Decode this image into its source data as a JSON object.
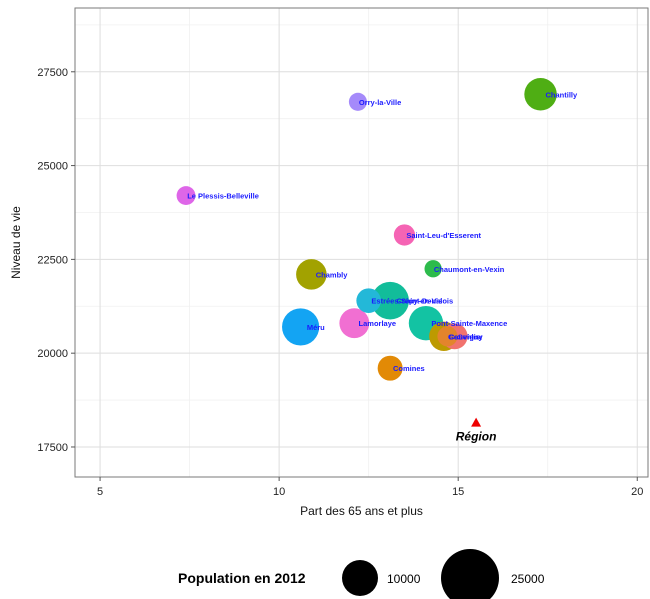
{
  "chart_data": {
    "type": "scatter",
    "xlabel": "Part des 65 ans et plus",
    "ylabel": "Niveau de vie",
    "xlim": [
      4.3,
      20.3
    ],
    "ylim": [
      16700,
      29200
    ],
    "x_ticks": [
      5,
      10,
      15,
      20
    ],
    "y_ticks": [
      17500,
      20000,
      22500,
      25000,
      27500
    ],
    "x_tick_labels": [
      "5",
      "10",
      "15",
      "20"
    ],
    "y_tick_labels": [
      "17500",
      "20000",
      "22500",
      "25000",
      "27500"
    ],
    "grid": true,
    "size_legend": {
      "title": "Population en 2012",
      "entries": [
        {
          "label": "10000",
          "value": 10000
        },
        {
          "label": "25000",
          "value": 25000
        }
      ]
    },
    "points": [
      {
        "label": "Chantilly",
        "x": 17.3,
        "y": 26900,
        "population": 11000,
        "color": "#4fae14"
      },
      {
        "label": "Orry-la-Ville",
        "x": 12.2,
        "y": 26700,
        "population": 3400,
        "color": "#a58afa"
      },
      {
        "label": "Le Plessis-Belleville",
        "x": 7.4,
        "y": 24200,
        "population": 3700,
        "color": "#de66e8"
      },
      {
        "label": "Saint-Leu-d'Esserent",
        "x": 13.5,
        "y": 23150,
        "population": 4700,
        "color": "#f564b4"
      },
      {
        "label": "Chaumont-en-Vexin",
        "x": 14.3,
        "y": 22250,
        "population": 3100,
        "color": "#2dbb4c"
      },
      {
        "label": "Chambly",
        "x": 10.9,
        "y": 22100,
        "population": 9700,
        "color": "#a2a200"
      },
      {
        "label": "Estrées-Saint-Denis",
        "x": 12.5,
        "y": 21400,
        "population": 6300,
        "color": "#23b8d8"
      },
      {
        "label": "Lamorlaye",
        "x": 12.1,
        "y": 20800,
        "population": 9300,
        "color": "#f16fd2"
      },
      {
        "label": "Crépy-en-Valois",
        "x": 13.1,
        "y": 21400,
        "population": 14700,
        "color": "#12bd9a"
      },
      {
        "label": "Pont-Sainte-Maxence",
        "x": 14.1,
        "y": 20800,
        "population": 12300,
        "color": "#13c3a3"
      },
      {
        "label": "Méru",
        "x": 10.6,
        "y": 20700,
        "population": 14400,
        "color": "#13a4f3"
      },
      {
        "label": "Gouvieux",
        "x": 14.6,
        "y": 20450,
        "population": 9000,
        "color": "#bd9a00"
      },
      {
        "label": "Senlis",
        "x": 14.9,
        "y": 20450,
        "population": 7000,
        "color": "#f1736e"
      },
      {
        "label": "Cauvigny",
        "x": 14.7,
        "y": 20450,
        "population": 4200,
        "color": "#e3842c"
      },
      {
        "label": "Comines",
        "x": 13.1,
        "y": 19600,
        "population": 6500,
        "color": "#e28a06"
      }
    ],
    "region": {
      "label": "Région",
      "x": 15.5,
      "y": 18150,
      "color": "#ee0000"
    }
  }
}
